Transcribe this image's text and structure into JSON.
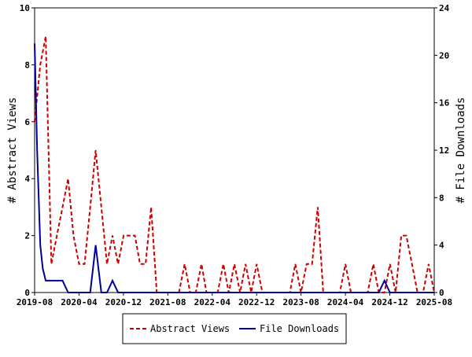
{
  "chart_data": {
    "type": "line",
    "xlabel": "",
    "x_tick_labels": [
      "2019-08",
      "2020-04",
      "2020-12",
      "2021-08",
      "2022-04",
      "2022-12",
      "2023-08",
      "2024-04",
      "2024-12",
      "2025-08"
    ],
    "x_range": [
      "2019-08-01",
      "2025-08-01"
    ],
    "y_left": {
      "label": "# Abstract Views",
      "range": [
        0,
        10
      ],
      "ticks": [
        0,
        2,
        4,
        6,
        8,
        10
      ]
    },
    "y_right": {
      "label": "# File Downloads",
      "range": [
        0,
        24
      ],
      "ticks": [
        0,
        4,
        8,
        12,
        16,
        20,
        24
      ]
    },
    "legend_position": "bottom",
    "grid": false,
    "series": [
      {
        "name": "Abstract Views",
        "axis": "left",
        "color": "#cc0000",
        "style": "dashed",
        "points": [
          [
            "2019-08-01",
            6
          ],
          [
            "2019-09-01",
            8
          ],
          [
            "2019-10-01",
            9
          ],
          [
            "2019-11-01",
            1
          ],
          [
            "2019-12-01",
            2
          ],
          [
            "2020-01-01",
            3
          ],
          [
            "2020-02-01",
            4
          ],
          [
            "2020-03-01",
            2
          ],
          [
            "2020-04-01",
            1
          ],
          [
            "2020-05-01",
            1
          ],
          [
            "2020-06-01",
            3
          ],
          [
            "2020-07-01",
            5
          ],
          [
            "2020-08-01",
            3
          ],
          [
            "2020-09-01",
            1
          ],
          [
            "2020-10-01",
            2
          ],
          [
            "2020-11-01",
            1
          ],
          [
            "2020-12-01",
            2
          ],
          [
            "2021-01-01",
            2
          ],
          [
            "2021-02-01",
            2
          ],
          [
            "2021-03-01",
            1
          ],
          [
            "2021-04-01",
            1
          ],
          [
            "2021-05-01",
            3
          ],
          [
            "2021-06-01",
            0
          ],
          [
            "2021-07-01",
            0
          ],
          [
            "2021-08-01",
            0
          ],
          [
            "2021-09-01",
            0
          ],
          [
            "2021-10-01",
            0
          ],
          [
            "2021-11-01",
            1
          ],
          [
            "2021-12-01",
            0
          ],
          [
            "2022-01-01",
            0
          ],
          [
            "2022-02-01",
            1
          ],
          [
            "2022-03-01",
            0
          ],
          [
            "2022-04-01",
            0
          ],
          [
            "2022-05-01",
            0
          ],
          [
            "2022-06-01",
            1
          ],
          [
            "2022-07-01",
            0
          ],
          [
            "2022-08-01",
            1
          ],
          [
            "2022-09-01",
            0
          ],
          [
            "2022-10-01",
            1
          ],
          [
            "2022-11-01",
            0
          ],
          [
            "2022-12-01",
            1
          ],
          [
            "2023-01-01",
            0
          ],
          [
            "2023-02-01",
            0
          ],
          [
            "2023-03-01",
            0
          ],
          [
            "2023-04-01",
            0
          ],
          [
            "2023-05-01",
            0
          ],
          [
            "2023-06-01",
            0
          ],
          [
            "2023-07-01",
            1
          ],
          [
            "2023-08-01",
            0
          ],
          [
            "2023-09-01",
            1
          ],
          [
            "2023-10-01",
            1
          ],
          [
            "2023-11-01",
            3
          ],
          [
            "2023-12-01",
            0
          ],
          [
            "2024-01-01",
            0
          ],
          [
            "2024-02-01",
            0
          ],
          [
            "2024-03-01",
            0
          ],
          [
            "2024-04-01",
            1
          ],
          [
            "2024-05-01",
            0
          ],
          [
            "2024-06-01",
            0
          ],
          [
            "2024-07-01",
            0
          ],
          [
            "2024-08-01",
            0
          ],
          [
            "2024-09-01",
            1
          ],
          [
            "2024-10-01",
            0
          ],
          [
            "2024-11-01",
            0
          ],
          [
            "2024-12-01",
            1
          ],
          [
            "2025-01-01",
            0
          ],
          [
            "2025-02-01",
            2
          ],
          [
            "2025-03-01",
            2
          ],
          [
            "2025-04-01",
            1
          ],
          [
            "2025-05-01",
            0
          ],
          [
            "2025-06-01",
            0
          ],
          [
            "2025-07-01",
            1
          ],
          [
            "2025-08-01",
            0
          ]
        ]
      },
      {
        "name": "File Downloads",
        "axis": "right",
        "color": "#000099",
        "style": "solid",
        "points": [
          [
            "2019-08-01",
            21
          ],
          [
            "2019-08-15",
            12
          ],
          [
            "2019-09-01",
            4
          ],
          [
            "2019-09-15",
            2
          ],
          [
            "2019-10-01",
            1
          ],
          [
            "2019-11-01",
            1
          ],
          [
            "2019-12-01",
            1
          ],
          [
            "2020-01-01",
            1
          ],
          [
            "2020-02-01",
            0
          ],
          [
            "2020-03-01",
            0
          ],
          [
            "2020-04-01",
            0
          ],
          [
            "2020-05-01",
            0
          ],
          [
            "2020-06-01",
            0
          ],
          [
            "2020-07-01",
            4
          ],
          [
            "2020-08-01",
            0
          ],
          [
            "2020-09-01",
            0
          ],
          [
            "2020-10-01",
            1
          ],
          [
            "2020-11-01",
            0
          ],
          [
            "2020-12-01",
            0
          ],
          [
            "2021-01-01",
            0
          ],
          [
            "2024-10-01",
            0
          ],
          [
            "2024-11-01",
            1
          ],
          [
            "2024-12-01",
            0
          ],
          [
            "2025-01-01",
            0
          ],
          [
            "2025-08-01",
            0
          ]
        ]
      }
    ]
  }
}
